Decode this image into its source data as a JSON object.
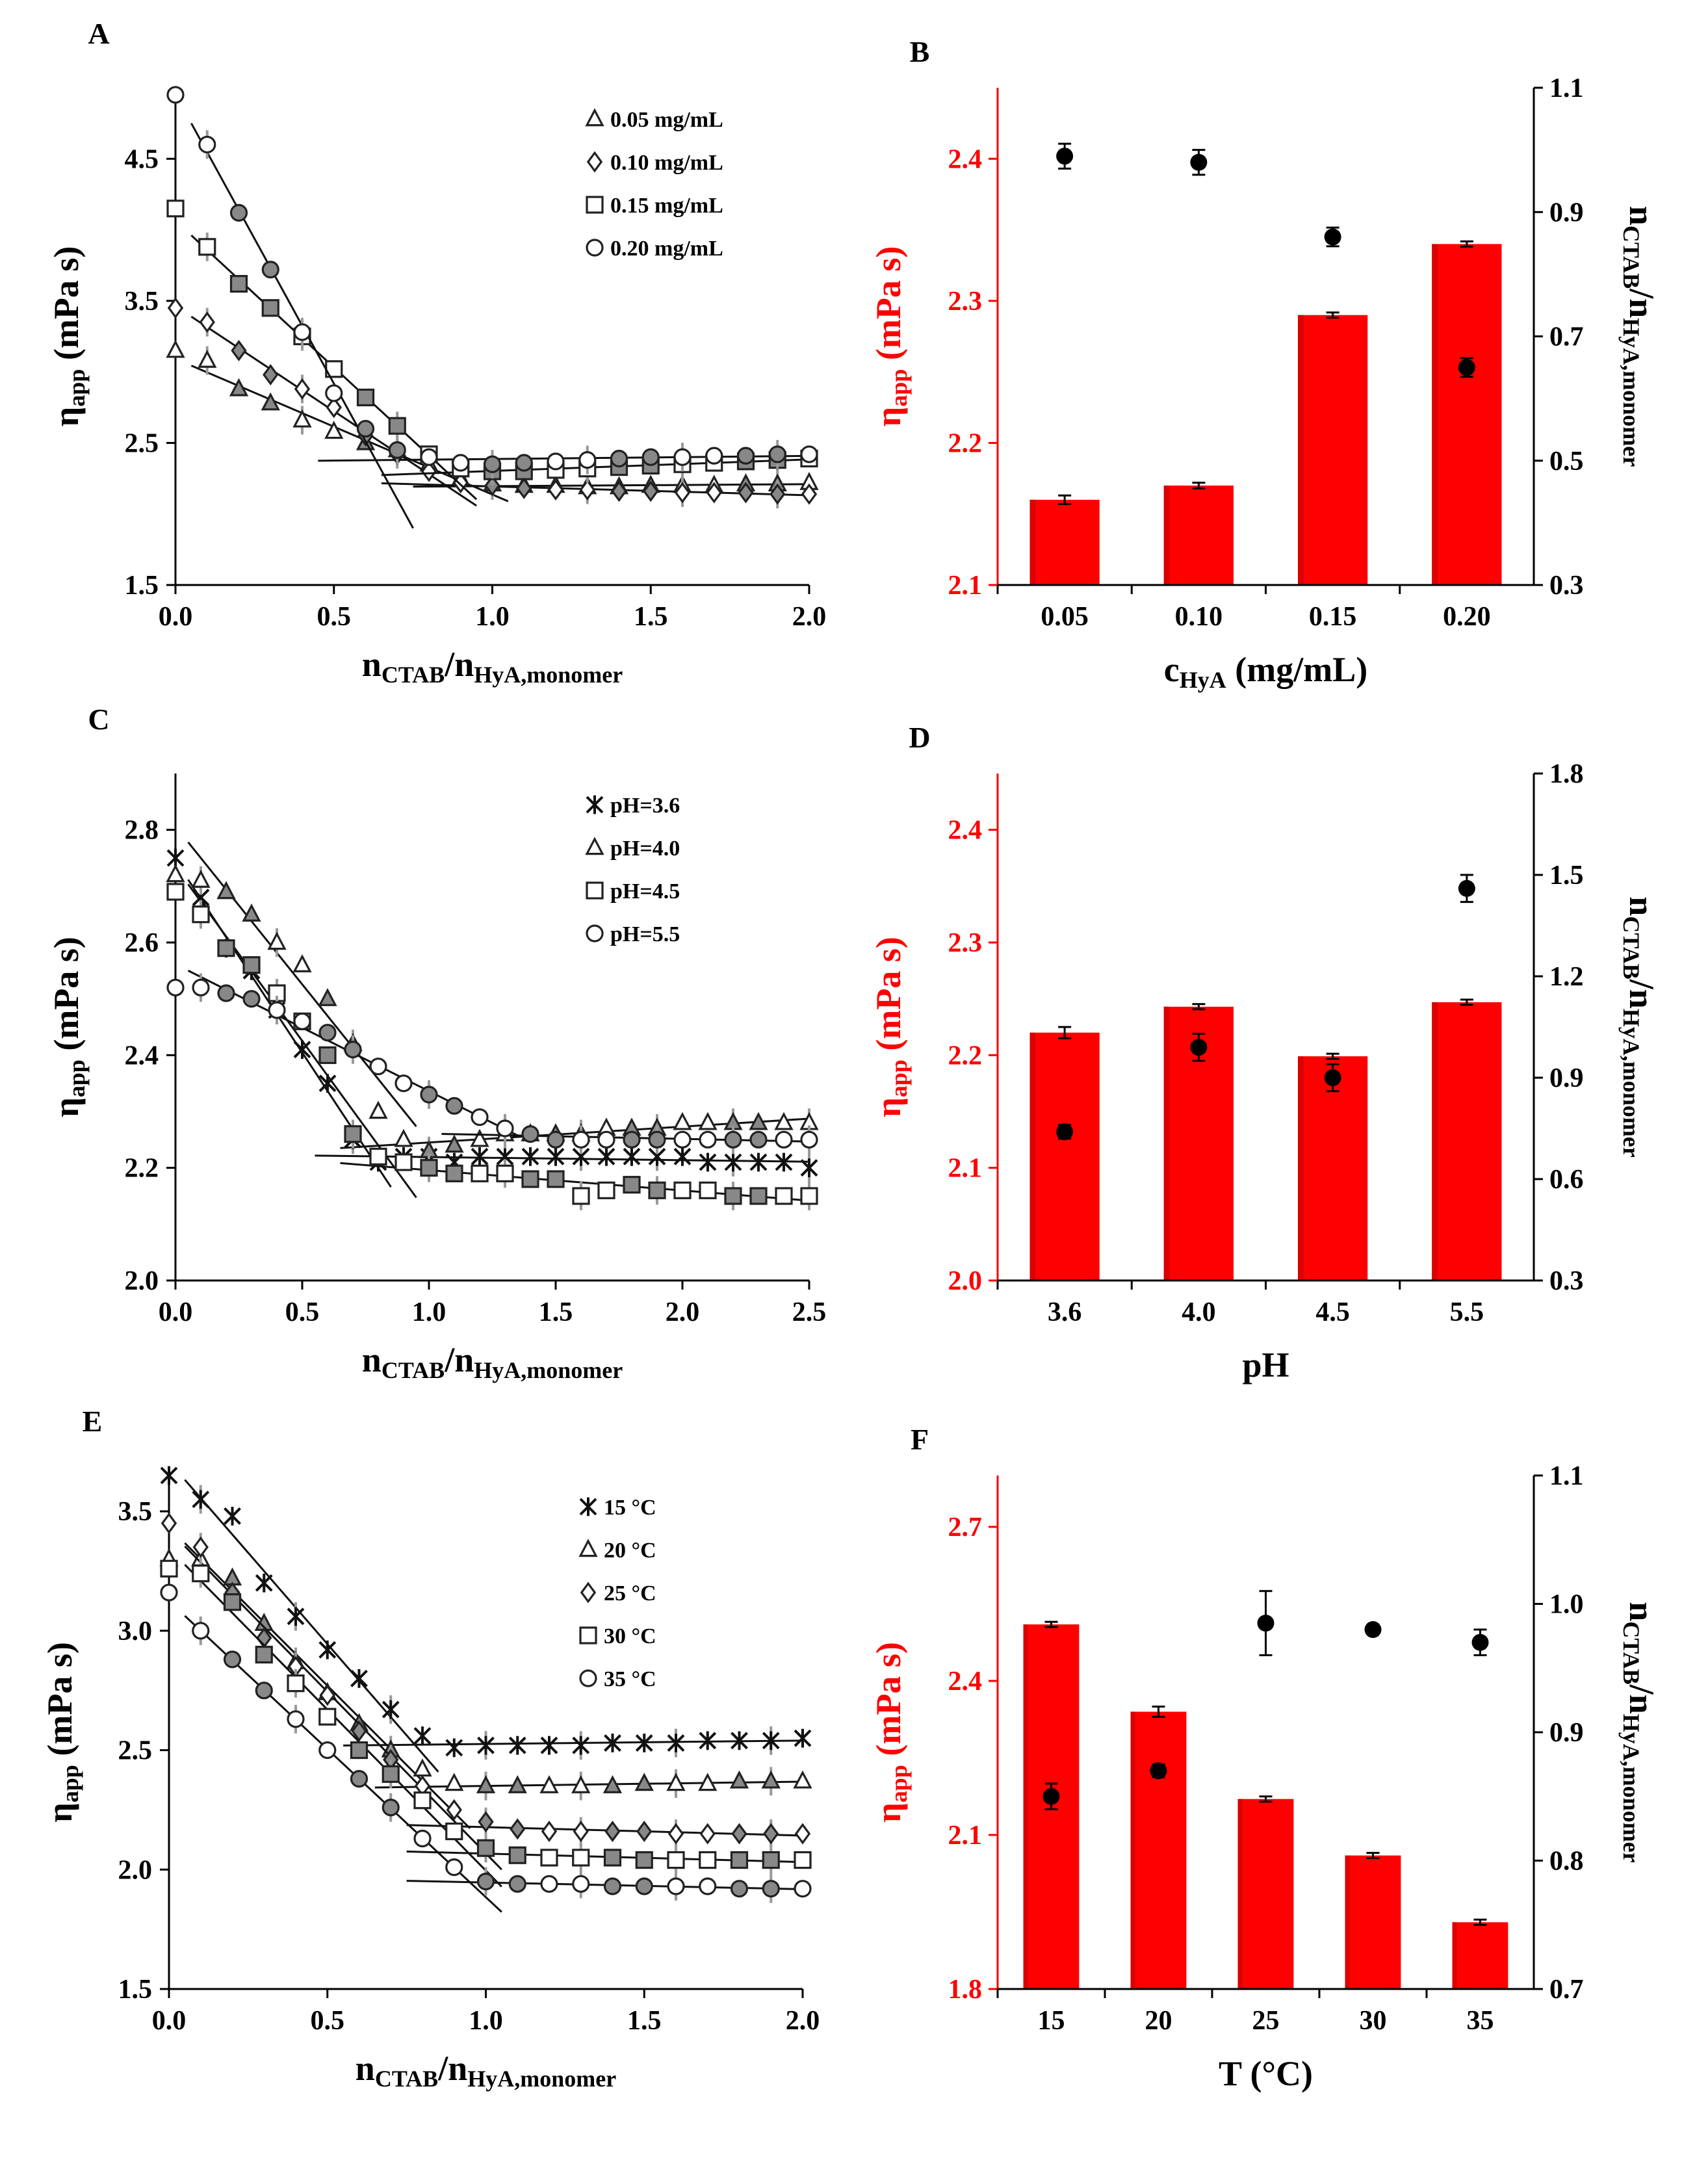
{
  "figure": {
    "colors": {
      "bar": "#ff0000",
      "bar_dark": "#d90000",
      "axis_red": "#ff0000",
      "marker_fill": "#ffffff",
      "filled_marker": "#888888",
      "dot": "#000000",
      "errorbar": "#999999"
    }
  },
  "chart_data": [
    {
      "panel": "A",
      "type": "scatter",
      "xlabel": "n_CTAB/n_HyA,monomer",
      "ylabel": "η_app (mPa s)",
      "xlim": [
        0,
        2.0
      ],
      "ylim": [
        1.5,
        5.0
      ],
      "xticks": [
        "0.0",
        "0.5",
        "1.0",
        "1.5",
        "2.0"
      ],
      "yticks": [
        "1.5",
        "2.5",
        "3.5",
        "4.5"
      ],
      "legend_position": "top-right",
      "series": [
        {
          "name": "0.05 mg/mL",
          "marker": "triangle",
          "x": [
            0,
            0.1,
            0.2,
            0.3,
            0.4,
            0.5,
            0.6,
            0.7,
            0.8,
            0.9,
            1.0,
            1.1,
            1.2,
            1.3,
            1.4,
            1.5,
            1.6,
            1.7,
            1.8,
            1.9,
            2.0
          ],
          "y": [
            3.15,
            3.08,
            2.88,
            2.78,
            2.66,
            2.58,
            2.5,
            2.45,
            2.35,
            2.25,
            2.21,
            2.2,
            2.2,
            2.19,
            2.19,
            2.2,
            2.2,
            2.2,
            2.21,
            2.21,
            2.22
          ]
        },
        {
          "name": "0.10 mg/mL",
          "marker": "diamond",
          "x": [
            0,
            0.1,
            0.2,
            0.3,
            0.4,
            0.5,
            0.6,
            0.7,
            0.8,
            0.9,
            1.0,
            1.1,
            1.2,
            1.3,
            1.4,
            1.5,
            1.6,
            1.7,
            1.8,
            1.9,
            2.0
          ],
          "y": [
            3.45,
            3.35,
            3.15,
            2.98,
            2.88,
            2.75,
            2.55,
            2.42,
            2.3,
            2.22,
            2.2,
            2.18,
            2.17,
            2.17,
            2.16,
            2.16,
            2.15,
            2.15,
            2.15,
            2.14,
            2.14
          ]
        },
        {
          "name": "0.15 mg/mL",
          "marker": "square",
          "x": [
            0,
            0.1,
            0.2,
            0.3,
            0.4,
            0.5,
            0.6,
            0.7,
            0.8,
            0.9,
            1.0,
            1.1,
            1.2,
            1.3,
            1.4,
            1.5,
            1.6,
            1.7,
            1.8,
            1.9,
            2.0
          ],
          "y": [
            4.15,
            3.88,
            3.62,
            3.45,
            3.25,
            3.02,
            2.82,
            2.62,
            2.42,
            2.32,
            2.3,
            2.3,
            2.31,
            2.32,
            2.33,
            2.34,
            2.35,
            2.36,
            2.37,
            2.38,
            2.39
          ]
        },
        {
          "name": "0.20 mg/mL",
          "marker": "circle",
          "x": [
            0,
            0.1,
            0.2,
            0.3,
            0.4,
            0.5,
            0.6,
            0.7,
            0.8,
            0.9,
            1.0,
            1.1,
            1.2,
            1.3,
            1.4,
            1.5,
            1.6,
            1.7,
            1.8,
            1.9,
            2.0
          ],
          "y": [
            4.95,
            4.6,
            4.12,
            3.72,
            3.28,
            2.85,
            2.6,
            2.45,
            2.4,
            2.36,
            2.35,
            2.36,
            2.37,
            2.38,
            2.39,
            2.4,
            2.4,
            2.41,
            2.41,
            2.42,
            2.42
          ]
        }
      ]
    },
    {
      "panel": "B",
      "type": "bar",
      "xlabel": "c_HyA (mg/mL)",
      "ylabel": "η_app (mPa s)",
      "y2label": "n_CTAB/n_HyA,monomer",
      "categories": [
        "0.05",
        "0.10",
        "0.15",
        "0.20"
      ],
      "values": [
        2.16,
        2.17,
        2.29,
        2.34
      ],
      "errors": [
        0.003,
        0.002,
        0.001,
        0.001
      ],
      "ylim": [
        2.1,
        2.45
      ],
      "yticks": [
        "2.1",
        "2.2",
        "2.3",
        "2.4"
      ],
      "secondary_values": [
        0.99,
        0.98,
        0.86,
        0.65
      ],
      "secondary_errors": [
        0.02,
        0.02,
        0.015,
        0.015
      ],
      "y2lim": [
        0.3,
        1.1
      ],
      "y2ticks": [
        "0.3",
        "0.5",
        "0.7",
        "0.9",
        "1.1"
      ]
    },
    {
      "panel": "C",
      "type": "scatter",
      "xlabel": "n_CTAB/n_HyA,monomer",
      "ylabel": "η_app (mPa s)",
      "xlim": [
        0,
        2.5
      ],
      "ylim": [
        2.0,
        2.9
      ],
      "xticks": [
        "0.0",
        "0.5",
        "1.0",
        "1.5",
        "2.0",
        "2.5"
      ],
      "yticks": [
        "2.0",
        "2.2",
        "2.4",
        "2.6",
        "2.8"
      ],
      "legend_position": "top-right",
      "series": [
        {
          "name": "pH=3.6",
          "marker": "star",
          "x": [
            0,
            0.1,
            0.2,
            0.3,
            0.4,
            0.5,
            0.6,
            0.7,
            0.8,
            0.9,
            1.0,
            1.1,
            1.2,
            1.3,
            1.4,
            1.5,
            1.6,
            1.7,
            1.8,
            1.9,
            2.0,
            2.1,
            2.2,
            2.3,
            2.4,
            2.5
          ],
          "y": [
            2.75,
            2.68,
            2.59,
            2.55,
            2.48,
            2.41,
            2.35,
            2.25,
            2.21,
            2.22,
            2.22,
            2.21,
            2.22,
            2.22,
            2.22,
            2.22,
            2.22,
            2.22,
            2.22,
            2.22,
            2.22,
            2.21,
            2.21,
            2.21,
            2.21,
            2.2
          ]
        },
        {
          "name": "pH=4.0",
          "marker": "triangle",
          "x": [
            0,
            0.1,
            0.2,
            0.3,
            0.4,
            0.5,
            0.6,
            0.7,
            0.8,
            0.9,
            1.0,
            1.1,
            1.2,
            1.3,
            1.4,
            1.5,
            1.6,
            1.7,
            1.8,
            1.9,
            2.0,
            2.1,
            2.2,
            2.3,
            2.4,
            2.5
          ],
          "y": [
            2.72,
            2.71,
            2.69,
            2.65,
            2.6,
            2.56,
            2.5,
            2.42,
            2.3,
            2.25,
            2.23,
            2.24,
            2.25,
            2.26,
            2.26,
            2.26,
            2.26,
            2.27,
            2.27,
            2.27,
            2.28,
            2.28,
            2.28,
            2.28,
            2.28,
            2.28
          ]
        },
        {
          "name": "pH=4.5",
          "marker": "square",
          "x": [
            0,
            0.1,
            0.2,
            0.3,
            0.4,
            0.5,
            0.6,
            0.7,
            0.8,
            0.9,
            1.0,
            1.1,
            1.2,
            1.3,
            1.4,
            1.5,
            1.6,
            1.7,
            1.8,
            1.9,
            2.0,
            2.1,
            2.2,
            2.3,
            2.4,
            2.5
          ],
          "y": [
            2.69,
            2.65,
            2.59,
            2.56,
            2.51,
            2.46,
            2.4,
            2.26,
            2.22,
            2.21,
            2.2,
            2.19,
            2.19,
            2.19,
            2.18,
            2.18,
            2.15,
            2.16,
            2.17,
            2.16,
            2.16,
            2.16,
            2.15,
            2.15,
            2.15,
            2.15
          ]
        },
        {
          "name": "pH=5.5",
          "marker": "circle",
          "x": [
            0,
            0.1,
            0.2,
            0.3,
            0.4,
            0.5,
            0.6,
            0.7,
            0.8,
            0.9,
            1.0,
            1.1,
            1.2,
            1.3,
            1.4,
            1.5,
            1.6,
            1.7,
            1.8,
            1.9,
            2.0,
            2.1,
            2.2,
            2.3,
            2.4,
            2.5
          ],
          "y": [
            2.52,
            2.52,
            2.51,
            2.5,
            2.48,
            2.46,
            2.44,
            2.41,
            2.38,
            2.35,
            2.33,
            2.31,
            2.29,
            2.27,
            2.26,
            2.25,
            2.25,
            2.25,
            2.25,
            2.25,
            2.25,
            2.25,
            2.25,
            2.25,
            2.25,
            2.25
          ]
        }
      ]
    },
    {
      "panel": "D",
      "type": "bar",
      "xlabel": "pH",
      "ylabel": "η_app (mPa s)",
      "y2label": "n_CTAB/n_HyA,monomer",
      "categories": [
        "3.6",
        "4.0",
        "4.5",
        "5.5"
      ],
      "values": [
        2.22,
        2.243,
        2.199,
        2.247
      ],
      "errors": [
        0.005,
        0.002,
        0.002,
        0.001
      ],
      "ylim": [
        2.0,
        2.45
      ],
      "yticks": [
        "2.0",
        "2.1",
        "2.2",
        "2.3",
        "2.4"
      ],
      "secondary_values": [
        0.74,
        0.99,
        0.9,
        1.46
      ],
      "secondary_errors": [
        0.02,
        0.04,
        0.04,
        0.04
      ],
      "y2lim": [
        0.3,
        1.8
      ],
      "y2ticks": [
        "0.3",
        "0.6",
        "0.9",
        "1.2",
        "1.5",
        "1.8"
      ]
    },
    {
      "panel": "E",
      "type": "scatter",
      "xlabel": "n_CTAB/n_HyA,monomer",
      "ylabel": "η_app (mPa s)",
      "xlim": [
        0,
        2.0
      ],
      "ylim": [
        1.5,
        3.65
      ],
      "xticks": [
        "0.0",
        "0.5",
        "1.0",
        "1.5",
        "2.0"
      ],
      "yticks": [
        "1.5",
        "2.0",
        "2.5",
        "3.0",
        "3.5"
      ],
      "legend_position": "top-right",
      "series": [
        {
          "name": "15 °C",
          "marker": "star",
          "x": [
            0,
            0.1,
            0.2,
            0.3,
            0.4,
            0.5,
            0.6,
            0.7,
            0.8,
            0.9,
            1.0,
            1.1,
            1.2,
            1.3,
            1.4,
            1.5,
            1.6,
            1.7,
            1.8,
            1.9,
            2.0
          ],
          "y": [
            3.65,
            3.55,
            3.48,
            3.2,
            3.06,
            2.92,
            2.8,
            2.67,
            2.56,
            2.51,
            2.52,
            2.52,
            2.52,
            2.52,
            2.53,
            2.53,
            2.53,
            2.54,
            2.54,
            2.54,
            2.55
          ]
        },
        {
          "name": "20 °C",
          "marker": "triangle",
          "x": [
            0,
            0.1,
            0.2,
            0.3,
            0.4,
            0.5,
            0.6,
            0.7,
            0.8,
            0.9,
            1.0,
            1.1,
            1.2,
            1.3,
            1.4,
            1.5,
            1.6,
            1.7,
            1.8,
            1.9,
            2.0
          ],
          "y": [
            3.3,
            3.3,
            3.22,
            3.03,
            2.87,
            2.74,
            2.61,
            2.5,
            2.42,
            2.36,
            2.35,
            2.35,
            2.35,
            2.35,
            2.35,
            2.36,
            2.36,
            2.36,
            2.37,
            2.37,
            2.37
          ]
        },
        {
          "name": "25 °C",
          "marker": "diamond",
          "x": [
            0,
            0.1,
            0.2,
            0.3,
            0.4,
            0.5,
            0.6,
            0.7,
            0.8,
            0.9,
            1.0,
            1.1,
            1.2,
            1.3,
            1.4,
            1.5,
            1.6,
            1.7,
            1.8,
            1.9,
            2.0
          ],
          "y": [
            3.45,
            3.35,
            3.16,
            2.97,
            2.85,
            2.73,
            2.58,
            2.46,
            2.35,
            2.25,
            2.2,
            2.17,
            2.16,
            2.16,
            2.16,
            2.16,
            2.15,
            2.15,
            2.15,
            2.15,
            2.15
          ]
        },
        {
          "name": "30 °C",
          "marker": "square",
          "x": [
            0,
            0.1,
            0.2,
            0.3,
            0.4,
            0.5,
            0.6,
            0.7,
            0.8,
            0.9,
            1.0,
            1.1,
            1.2,
            1.3,
            1.4,
            1.5,
            1.6,
            1.7,
            1.8,
            1.9,
            2.0
          ],
          "y": [
            3.26,
            3.24,
            3.12,
            2.9,
            2.78,
            2.64,
            2.5,
            2.4,
            2.29,
            2.16,
            2.09,
            2.06,
            2.05,
            2.05,
            2.05,
            2.04,
            2.04,
            2.04,
            2.04,
            2.04,
            2.04
          ]
        },
        {
          "name": "35 °C",
          "marker": "circle",
          "x": [
            0,
            0.1,
            0.2,
            0.3,
            0.4,
            0.5,
            0.6,
            0.7,
            0.8,
            0.9,
            1.0,
            1.1,
            1.2,
            1.3,
            1.4,
            1.5,
            1.6,
            1.7,
            1.8,
            1.9,
            2.0
          ],
          "y": [
            3.16,
            3.0,
            2.88,
            2.75,
            2.63,
            2.5,
            2.38,
            2.26,
            2.13,
            2.01,
            1.95,
            1.94,
            1.94,
            1.94,
            1.93,
            1.93,
            1.93,
            1.93,
            1.92,
            1.92,
            1.92
          ]
        }
      ]
    },
    {
      "panel": "F",
      "type": "bar",
      "xlabel": "T (°C)",
      "ylabel": "η_app (mPa s)",
      "y2label": "n_CTAB/n_HyA,monomer",
      "categories": [
        "15",
        "20",
        "25",
        "30",
        "35"
      ],
      "values": [
        2.51,
        2.34,
        2.17,
        2.06,
        1.93
      ],
      "errors": [
        0.002,
        0.01,
        0.002,
        0.002,
        0.002
      ],
      "ylim": [
        1.8,
        2.8
      ],
      "yticks": [
        "1.8",
        "2.1",
        "2.4",
        "2.7"
      ],
      "secondary_values": [
        0.85,
        0.87,
        0.985,
        0.98,
        0.97
      ],
      "secondary_errors": [
        0.01,
        0.005,
        0.025,
        0.0,
        0.01
      ],
      "y2lim": [
        0.7,
        1.1
      ],
      "y2ticks": [
        "0.7",
        "0.8",
        "0.9",
        "1.0",
        "1.1"
      ]
    }
  ]
}
